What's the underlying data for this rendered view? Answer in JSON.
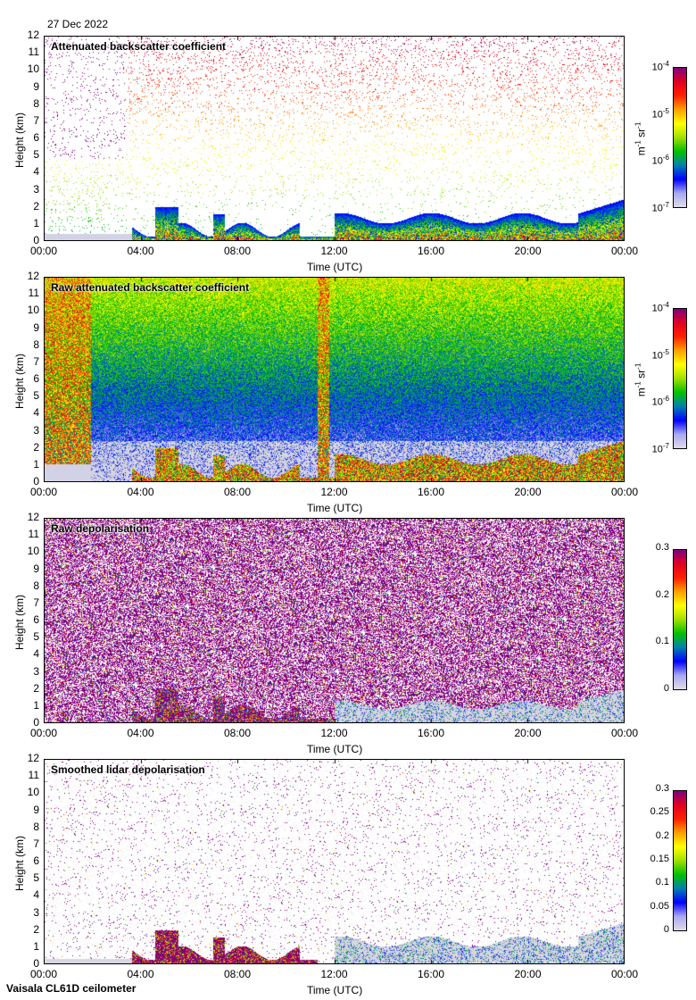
{
  "date": "27 Dec 2022",
  "footer": "Vaisala CL61D ceilometer",
  "chart_data": [
    {
      "type": "heatmap",
      "title": "Attenuated backscatter coefficient",
      "xlabel": "Time (UTC)",
      "ylabel": "Height (km)",
      "xticks": [
        "00:00",
        "04:00",
        "08:00",
        "12:00",
        "16:00",
        "20:00",
        "00:00"
      ],
      "yticks": [
        "0",
        "1",
        "2",
        "3",
        "4",
        "5",
        "6",
        "7",
        "8",
        "9",
        "10",
        "11",
        "12"
      ],
      "ylim": [
        0,
        12
      ],
      "colorbar": {
        "scale": "log",
        "range": [
          1e-07,
          0.0001
        ],
        "ticks": [
          "10-7",
          "10-6",
          "10-5",
          "10-4"
        ],
        "unit": "m-1 sr-1"
      },
      "kind": "sparse-backscatter"
    },
    {
      "type": "heatmap",
      "title": "Raw attenuated backscatter coefficient",
      "xlabel": "Time (UTC)",
      "ylabel": "Height (km)",
      "xticks": [
        "00:00",
        "04:00",
        "08:00",
        "12:00",
        "16:00",
        "20:00",
        "00:00"
      ],
      "yticks": [
        "0",
        "1",
        "2",
        "3",
        "4",
        "5",
        "6",
        "7",
        "8",
        "9",
        "10",
        "11",
        "12"
      ],
      "ylim": [
        0,
        12
      ],
      "colorbar": {
        "scale": "log",
        "range": [
          1e-07,
          0.0001
        ],
        "ticks": [
          "10-7",
          "10-6",
          "10-5",
          "10-4"
        ],
        "unit": "m-1 sr-1"
      },
      "kind": "raw-backscatter"
    },
    {
      "type": "heatmap",
      "title": "Raw depolarisation",
      "xlabel": "Time (UTC)",
      "ylabel": "Height (km)",
      "xticks": [
        "00:00",
        "04:00",
        "08:00",
        "12:00",
        "16:00",
        "20:00",
        "00:00"
      ],
      "yticks": [
        "0",
        "1",
        "2",
        "3",
        "4",
        "5",
        "6",
        "7",
        "8",
        "9",
        "10",
        "11",
        "12"
      ],
      "ylim": [
        0,
        12
      ],
      "colorbar": {
        "scale": "linear",
        "range": [
          0,
          0.3
        ],
        "ticks": [
          "0",
          "0.1",
          "0.2",
          "0.3"
        ],
        "unit": ""
      },
      "kind": "raw-depol"
    },
    {
      "type": "heatmap",
      "title": "Smoothed lidar depolarisation",
      "xlabel": "Time (UTC)",
      "ylabel": "Height (km)",
      "xticks": [
        "00:00",
        "04:00",
        "08:00",
        "12:00",
        "16:00",
        "20:00",
        "00:00"
      ],
      "yticks": [
        "0",
        "1",
        "2",
        "3",
        "4",
        "5",
        "6",
        "7",
        "8",
        "9",
        "10",
        "11",
        "12"
      ],
      "ylim": [
        0,
        12
      ],
      "colorbar": {
        "scale": "linear",
        "range": [
          0,
          0.3
        ],
        "ticks": [
          "0",
          "0.05",
          "0.1",
          "0.15",
          "0.2",
          "0.25",
          "0.3"
        ],
        "unit": ""
      },
      "kind": "smooth-depol"
    }
  ]
}
